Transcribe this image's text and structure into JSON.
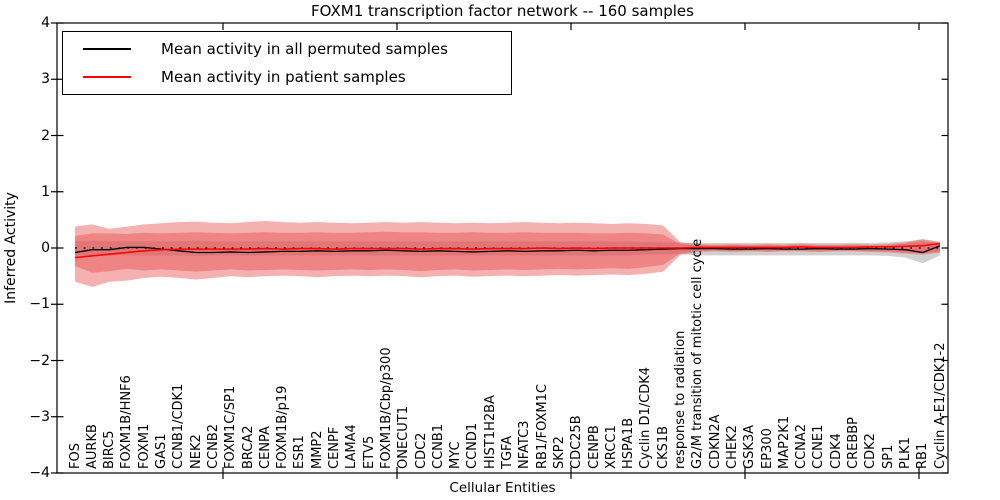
{
  "chart_data": {
    "type": "line",
    "title": "FOXM1 transcription factor network -- 160 samples",
    "xlabel": "Cellular Entities",
    "ylabel": "Inferred Activity",
    "ylim": [
      -4,
      4
    ],
    "yticks": [
      4,
      3,
      2,
      1,
      0,
      -1,
      -2,
      -3,
      -4
    ],
    "grid": false,
    "legend_position": "upper left",
    "zero_line": {
      "color": "#000000",
      "style": "dotted",
      "y": 0
    },
    "categories": [
      "FOS",
      "AURKB",
      "BIRC5",
      "FOXM1B/HNF6",
      "FOXM1",
      "GAS1",
      "CCNB1/CDK1",
      "NEK2",
      "CCNB2",
      "FOXM1C/SP1",
      "BRCA2",
      "CENPA",
      "FOXM1B/p19",
      "ESR1",
      "MMP2",
      "CENPF",
      "LAMA4",
      "ETV5",
      "FOXM1B/Cbp/p300",
      "ONECUT1",
      "CDC2",
      "CCNB1",
      "MYC",
      "CCND1",
      "HIST1H2BA",
      "TGFA",
      "NFATC3",
      "RB1/FOXM1C",
      "SKP2",
      "CDC25B",
      "CENPB",
      "XRCC1",
      "HSPA1B",
      "Cyclin D1/CDK4",
      "CKS1B",
      "response to radiation",
      "G2/M transition of mitotic cell cycle",
      "CDKN2A",
      "CHEK2",
      "GSK3A",
      "EP300",
      "MAP2K1",
      "CCNA2",
      "CCNE1",
      "CDK4",
      "CREBBP",
      "CDK2",
      "SP1",
      "PLK1",
      "RB1",
      "Cyclin A-E1/CDK1-2"
    ],
    "series": [
      {
        "name": "Mean activity in all permuted samples",
        "color": "#000000",
        "values": [
          -0.08,
          -0.03,
          -0.03,
          0.01,
          0.01,
          -0.02,
          -0.05,
          -0.08,
          -0.08,
          -0.07,
          -0.08,
          -0.07,
          -0.06,
          -0.06,
          -0.05,
          -0.06,
          -0.05,
          -0.05,
          -0.04,
          -0.05,
          -0.06,
          -0.05,
          -0.06,
          -0.07,
          -0.06,
          -0.05,
          -0.06,
          -0.05,
          -0.05,
          -0.04,
          -0.05,
          -0.04,
          -0.04,
          -0.03,
          -0.02,
          -0.01,
          -0.01,
          -0.01,
          -0.02,
          -0.02,
          -0.01,
          -0.02,
          -0.02,
          -0.01,
          -0.02,
          -0.02,
          -0.01,
          -0.02,
          -0.03,
          -0.08,
          0.04
        ]
      },
      {
        "name": "Mean activity in patient samples",
        "color": "#ff0000",
        "values": [
          -0.17,
          -0.14,
          -0.11,
          -0.08,
          -0.05,
          -0.03,
          -0.02,
          -0.02,
          -0.02,
          -0.02,
          -0.02,
          -0.01,
          -0.02,
          -0.01,
          -0.01,
          -0.02,
          -0.01,
          -0.01,
          -0.01,
          -0.01,
          -0.02,
          -0.01,
          -0.01,
          -0.02,
          -0.01,
          -0.01,
          -0.01,
          0.0,
          -0.01,
          0.0,
          -0.01,
          0.0,
          0.0,
          0.0,
          0.0,
          0.0,
          0.01,
          0.01,
          0.01,
          0.01,
          0.01,
          0.01,
          0.02,
          0.01,
          0.01,
          0.01,
          0.02,
          0.02,
          0.03,
          0.04,
          0.08
        ]
      }
    ],
    "bands": [
      {
        "name": "permuted-range-band",
        "color": "#787878",
        "opacity": 0.35,
        "upper": [
          0.12,
          0.13,
          0.12,
          0.12,
          0.12,
          0.12,
          0.12,
          0.13,
          0.12,
          0.12,
          0.12,
          0.12,
          0.12,
          0.12,
          0.12,
          0.12,
          0.12,
          0.12,
          0.12,
          0.12,
          0.12,
          0.12,
          0.12,
          0.12,
          0.12,
          0.12,
          0.12,
          0.12,
          0.12,
          0.12,
          0.12,
          0.12,
          0.12,
          0.11,
          0.1,
          0.1,
          0.09,
          0.09,
          0.09,
          0.09,
          0.09,
          0.09,
          0.09,
          0.09,
          0.09,
          0.09,
          0.09,
          0.1,
          0.12,
          0.15,
          0.1
        ],
        "lower": [
          -0.13,
          -0.14,
          -0.13,
          -0.13,
          -0.13,
          -0.13,
          -0.13,
          -0.14,
          -0.13,
          -0.13,
          -0.13,
          -0.13,
          -0.13,
          -0.13,
          -0.13,
          -0.13,
          -0.13,
          -0.13,
          -0.13,
          -0.13,
          -0.13,
          -0.13,
          -0.13,
          -0.13,
          -0.13,
          -0.13,
          -0.13,
          -0.13,
          -0.13,
          -0.13,
          -0.13,
          -0.13,
          -0.13,
          -0.12,
          -0.11,
          -0.11,
          -0.13,
          -0.13,
          -0.13,
          -0.13,
          -0.13,
          -0.13,
          -0.13,
          -0.13,
          -0.13,
          -0.13,
          -0.13,
          -0.14,
          -0.17,
          -0.27,
          -0.13
        ]
      },
      {
        "name": "patient-range-outer-band",
        "color": "#e85050",
        "opacity": 0.45,
        "upper": [
          0.38,
          0.42,
          0.34,
          0.38,
          0.42,
          0.44,
          0.46,
          0.47,
          0.45,
          0.44,
          0.46,
          0.48,
          0.46,
          0.45,
          0.46,
          0.45,
          0.44,
          0.45,
          0.46,
          0.45,
          0.46,
          0.45,
          0.44,
          0.45,
          0.44,
          0.45,
          0.46,
          0.45,
          0.44,
          0.45,
          0.44,
          0.43,
          0.44,
          0.43,
          0.4,
          0.1,
          0.07,
          0.06,
          0.07,
          0.06,
          0.07,
          0.06,
          0.08,
          0.06,
          0.06,
          0.07,
          0.06,
          0.07,
          0.1,
          0.16,
          0.11
        ],
        "lower": [
          -0.6,
          -0.69,
          -0.6,
          -0.58,
          -0.53,
          -0.51,
          -0.53,
          -0.56,
          -0.53,
          -0.5,
          -0.52,
          -0.5,
          -0.49,
          -0.5,
          -0.52,
          -0.5,
          -0.49,
          -0.5,
          -0.49,
          -0.5,
          -0.52,
          -0.5,
          -0.49,
          -0.51,
          -0.5,
          -0.49,
          -0.5,
          -0.49,
          -0.48,
          -0.49,
          -0.48,
          -0.47,
          -0.48,
          -0.46,
          -0.42,
          -0.12,
          -0.07,
          -0.06,
          -0.07,
          -0.06,
          -0.07,
          -0.06,
          -0.06,
          -0.07,
          -0.06,
          -0.06,
          -0.07,
          -0.08,
          -0.1,
          -0.12,
          -0.08
        ]
      },
      {
        "name": "patient-range-inner-band",
        "color": "#e85050",
        "opacity": 0.45,
        "upper": [
          0.21,
          0.26,
          0.26,
          0.25,
          0.27,
          0.26,
          0.27,
          0.28,
          0.27,
          0.26,
          0.27,
          0.28,
          0.27,
          0.27,
          0.28,
          0.27,
          0.27,
          0.28,
          0.29,
          0.28,
          0.28,
          0.27,
          0.27,
          0.28,
          0.27,
          0.27,
          0.28,
          0.27,
          0.27,
          0.27,
          0.26,
          0.26,
          0.27,
          0.26,
          0.24,
          0.07,
          0.05,
          0.04,
          0.05,
          0.04,
          0.05,
          0.04,
          0.05,
          0.04,
          0.04,
          0.05,
          0.04,
          0.05,
          0.08,
          0.12,
          0.08
        ],
        "lower": [
          -0.32,
          -0.44,
          -0.41,
          -0.37,
          -0.4,
          -0.38,
          -0.4,
          -0.42,
          -0.4,
          -0.38,
          -0.4,
          -0.39,
          -0.38,
          -0.39,
          -0.4,
          -0.39,
          -0.38,
          -0.39,
          -0.38,
          -0.39,
          -0.41,
          -0.39,
          -0.38,
          -0.4,
          -0.39,
          -0.38,
          -0.39,
          -0.38,
          -0.37,
          -0.38,
          -0.37,
          -0.36,
          -0.37,
          -0.34,
          -0.3,
          -0.09,
          -0.05,
          -0.04,
          -0.05,
          -0.04,
          -0.05,
          -0.04,
          -0.04,
          -0.05,
          -0.04,
          -0.04,
          -0.05,
          -0.06,
          -0.08,
          -0.09,
          -0.06
        ]
      }
    ]
  }
}
